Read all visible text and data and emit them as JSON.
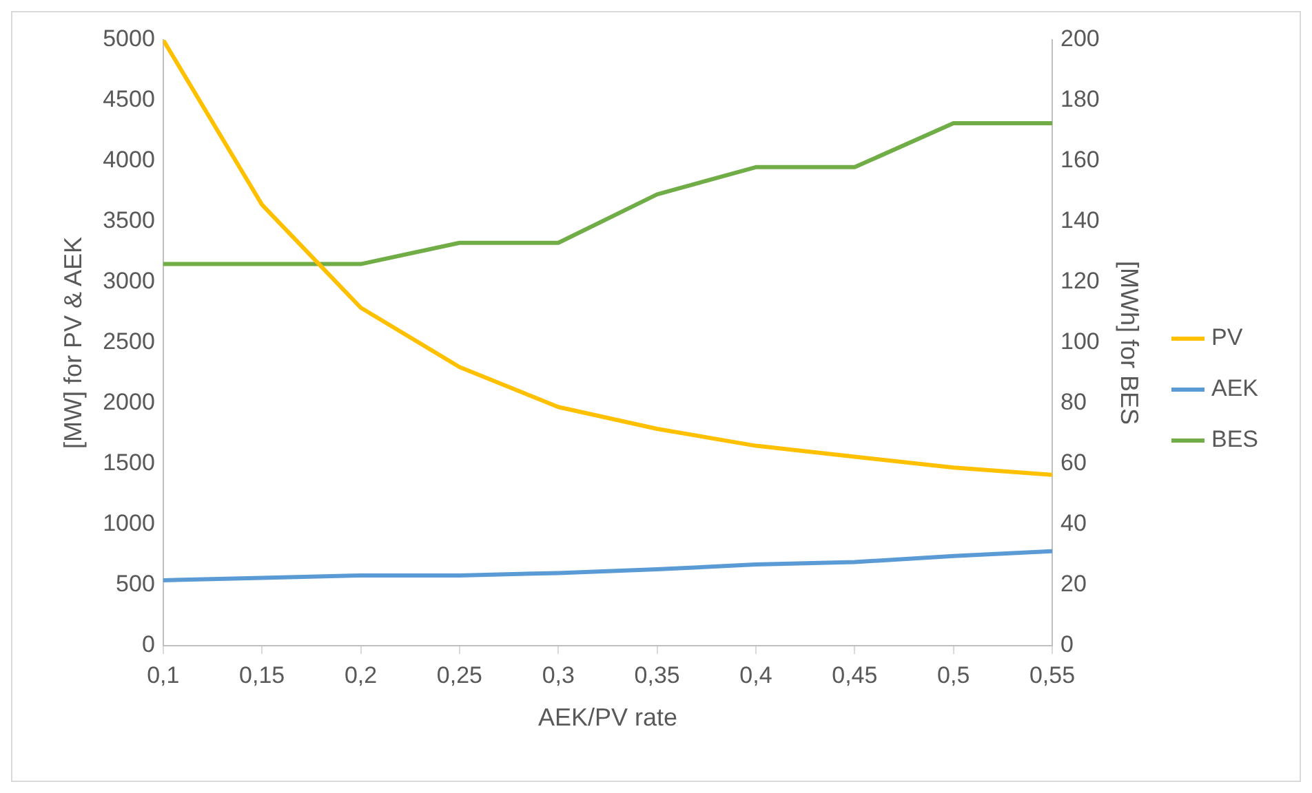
{
  "chart_data": {
    "type": "line",
    "xlabel": "AEK/PV rate",
    "ylabel": "[MW] for PV & AEK",
    "y2label": "[MWh] for BES",
    "x": [
      0.1,
      0.15,
      0.2,
      0.25,
      0.3,
      0.35,
      0.4,
      0.45,
      0.5,
      0.55
    ],
    "series": [
      {
        "name": "PV",
        "color": "#ffc000",
        "values": [
          5000,
          3640,
          2790,
          2300,
          1970,
          1790,
          1650,
          1560,
          1470,
          1410
        ]
      },
      {
        "name": "AEK",
        "color": "#5b9bd5",
        "values": [
          540,
          560,
          580,
          580,
          600,
          630,
          670,
          690,
          740,
          780
        ]
      },
      {
        "name": "BES",
        "color": "#70ad47",
        "axis": "y2",
        "values": [
          126,
          126,
          126,
          133,
          133,
          149,
          158,
          158,
          172.5,
          172.5
        ]
      }
    ],
    "xlim": [
      0.1,
      0.55
    ],
    "xticks": [
      {
        "value": 0.1,
        "label": "0,1"
      },
      {
        "value": 0.15,
        "label": "0,15"
      },
      {
        "value": 0.2,
        "label": "0,2"
      },
      {
        "value": 0.25,
        "label": "0,25"
      },
      {
        "value": 0.3,
        "label": "0,3"
      },
      {
        "value": 0.35,
        "label": "0,35"
      },
      {
        "value": 0.4,
        "label": "0,4"
      },
      {
        "value": 0.45,
        "label": "0,45"
      },
      {
        "value": 0.5,
        "label": "0,5"
      },
      {
        "value": 0.55,
        "label": "0,55"
      }
    ],
    "ylim": [
      0,
      5000
    ],
    "yticks": [
      0,
      500,
      1000,
      1500,
      2000,
      2500,
      3000,
      3500,
      4000,
      4500,
      5000
    ],
    "y2lim": [
      0,
      200
    ],
    "y2ticks": [
      0,
      20,
      40,
      60,
      80,
      100,
      120,
      140,
      160,
      180,
      200
    ],
    "grid": false,
    "legend": "right",
    "marker": "none",
    "line_style": "solid"
  }
}
